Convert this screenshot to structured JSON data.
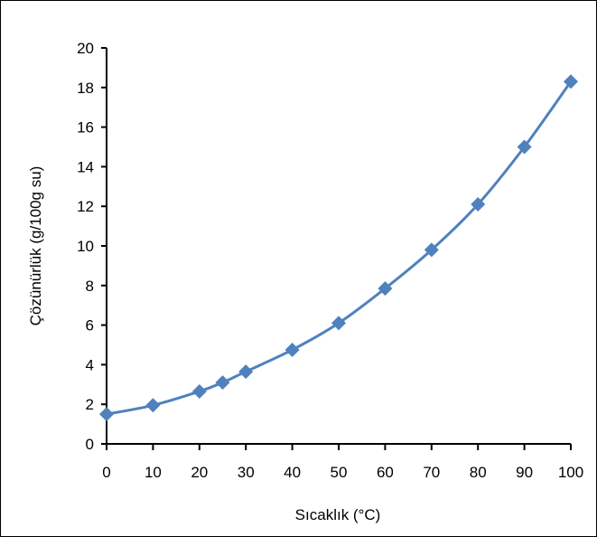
{
  "chart_data": {
    "type": "line",
    "title": "",
    "xlabel": "Sıcaklık (°C)",
    "ylabel": "Çözünürlük (g/100g su)",
    "xlim": [
      0,
      100
    ],
    "ylim": [
      0,
      20
    ],
    "x_ticks": [
      0,
      10,
      20,
      30,
      40,
      50,
      60,
      70,
      80,
      90,
      100
    ],
    "y_ticks": [
      0,
      2,
      4,
      6,
      8,
      10,
      12,
      14,
      16,
      18,
      20
    ],
    "grid": false,
    "legend": "none",
    "marker": "diamond",
    "line_style": "smoothed",
    "series_color": "#4f81bd",
    "series": [
      {
        "x": [
          0,
          10,
          20,
          25,
          30,
          40,
          50,
          60,
          70,
          80,
          90,
          100
        ],
        "y": [
          1.5,
          1.95,
          2.65,
          3.1,
          3.65,
          4.75,
          6.1,
          7.85,
          9.8,
          12.1,
          15.0,
          18.3
        ]
      }
    ]
  }
}
